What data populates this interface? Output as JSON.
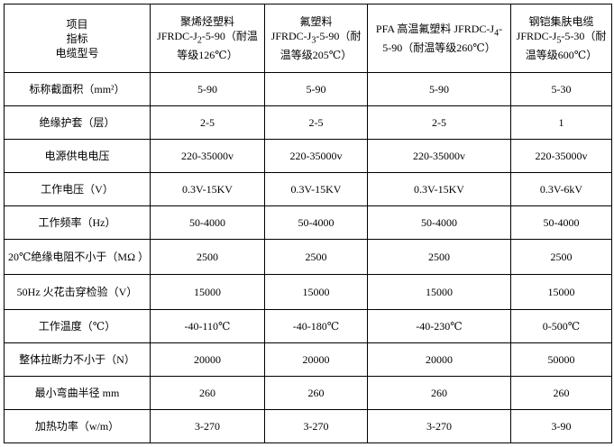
{
  "header": {
    "corner": [
      "项目",
      "指标",
      "电缆型号"
    ],
    "columns": [
      {
        "name": "聚烯烃塑料",
        "model": "JFRDC-J",
        "sub": "2",
        "rest": "-5-90（耐温等级126℃）"
      },
      {
        "name": "氟塑料",
        "model": "JFRDC-J",
        "sub": "3",
        "rest": "-5-90（耐温等级205℃）"
      },
      {
        "name": "PFA 高温氟塑料 ",
        "model": "JFRDC-J",
        "sub": "4",
        "rest": "-5-90（耐温等级260℃）"
      },
      {
        "name": "钢铠集肤电缆",
        "model": "JFRDC-J",
        "sub": "5",
        "rest": "-5-30（耐温等级600℃）"
      }
    ]
  },
  "rows": [
    {
      "label": "标称截面积（mm²）",
      "values": [
        "5-90",
        "5-90",
        "5-90",
        "5-30"
      ]
    },
    {
      "label": "绝缘护套（层）",
      "values": [
        "2-5",
        "2-5",
        "2-5",
        "1"
      ]
    },
    {
      "label": "电源供电电压",
      "values": [
        "220-35000v",
        "220-35000v",
        "220-35000v",
        "220-35000v"
      ]
    },
    {
      "label": "工作电压（V）",
      "values": [
        "0.3V-15KV",
        "0.3V-15KV",
        "0.3V-15KV",
        "0.3V-6kV"
      ]
    },
    {
      "label": "工作频率（Hz）",
      "values": [
        "50-4000",
        "50-4000",
        "50-4000",
        "50-4000"
      ]
    },
    {
      "label": "20℃绝缘电阻不小于（MΩ ）",
      "values": [
        "2500",
        "2500",
        "2500",
        "2500"
      ]
    },
    {
      "label": "50Hz 火花击穿检验（V）",
      "values": [
        "15000",
        "15000",
        "15000",
        "15000"
      ]
    },
    {
      "label": "工作温度（℃）",
      "values": [
        "-40-110℃",
        "-40-180℃",
        "-40-230℃",
        "0-500℃"
      ]
    },
    {
      "label": "整体拉断力不小于（N）",
      "values": [
        "20000",
        "20000",
        "20000",
        "50000"
      ]
    },
    {
      "label": "最小弯曲半径 mm",
      "values": [
        "260",
        "260",
        "260",
        "260"
      ]
    },
    {
      "label": "加热功率（w/m）",
      "values": [
        "3-270",
        "3-270",
        "3-270",
        "3-90"
      ]
    }
  ]
}
